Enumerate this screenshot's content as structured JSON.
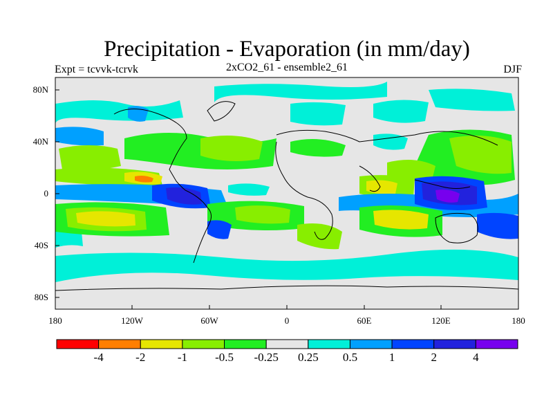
{
  "title": "Precipitation - Evaporation (in mm/day)",
  "subtitle_left": "Expt = tcvvk-tcrvk",
  "subtitle_center": "2xCO2_61 - ensemble2_61",
  "subtitle_right": "DJF",
  "y_ticks": [
    "80N",
    "40N",
    "0",
    "40S",
    "80S"
  ],
  "x_ticks": [
    "180",
    "120W",
    "60W",
    "0",
    "60E",
    "120E",
    "180"
  ],
  "colorbar": {
    "colors": [
      "#ff0000",
      "#ff7f00",
      "#e6e600",
      "#88ee00",
      "#22ee22",
      "#e6e6e6",
      "#00f0d8",
      "#00a0ff",
      "#0044ff",
      "#2222dd",
      "#7700ee"
    ],
    "labels": [
      "-4",
      "-2",
      "-1",
      "-0.5",
      "-0.25",
      "0.25",
      "0.5",
      "1",
      "2",
      "4"
    ]
  },
  "colors": {
    "land_outline": "#000000",
    "background": "#e6e6e6"
  }
}
